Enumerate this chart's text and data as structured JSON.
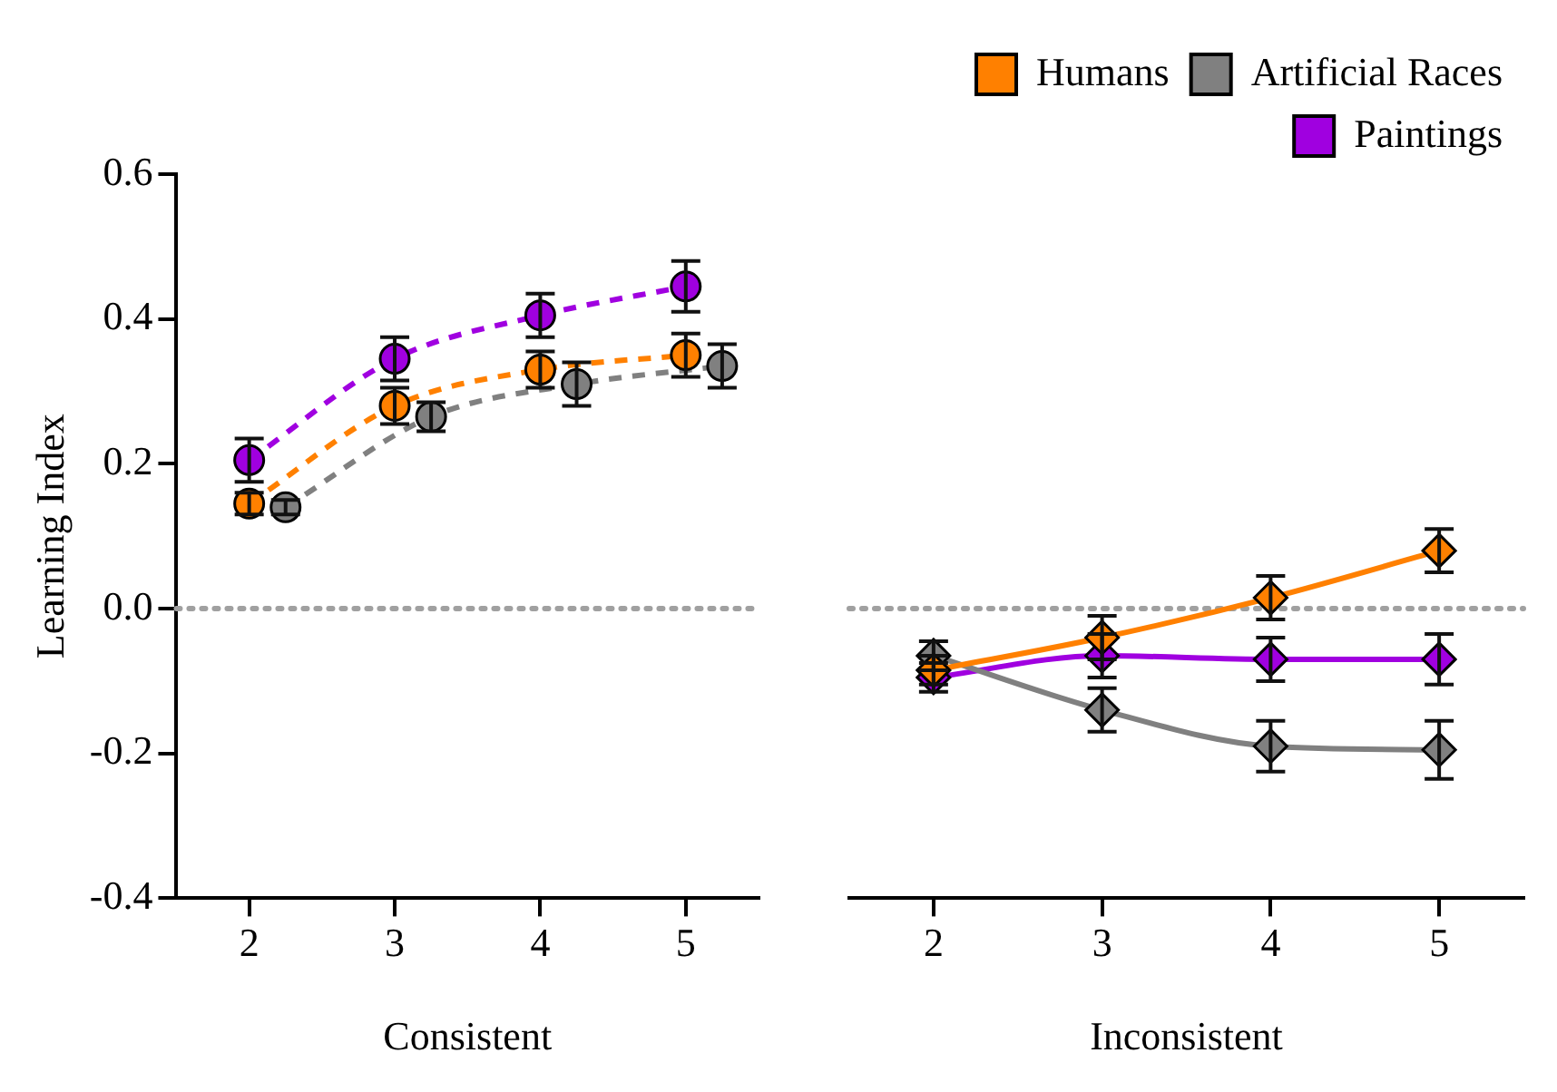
{
  "chart_data": [
    {
      "type": "line",
      "ylabel": "Learning Index",
      "xlabel": "Consistent",
      "xlim": [
        1.5,
        5.5
      ],
      "xticks": [
        2,
        3,
        4,
        5
      ],
      "ylim": [
        -0.4,
        0.6
      ],
      "yticks": [
        {
          "value": -0.4,
          "label": "-0.4"
        },
        {
          "value": -0.2,
          "label": "-0.2"
        },
        {
          "value": 0,
          "label": "0.0"
        },
        {
          "value": 0.2,
          "label": "0.2"
        },
        {
          "value": 0.4,
          "label": "0.4"
        },
        {
          "value": 0.6,
          "label": "0.6"
        }
      ],
      "grid": false,
      "ref_lines": [
        {
          "axis": "y",
          "value": 0,
          "color": "#a0a0a0",
          "line_style": "dotted"
        }
      ],
      "series": [
        {
          "color": "#ff8000",
          "marker": "circle",
          "line_style": "dashed",
          "x": [
            2,
            3,
            4,
            5
          ],
          "values": [
            0.145,
            0.28,
            0.33,
            0.35
          ],
          "errors": [
            0.015,
            0.025,
            0.025,
            0.03
          ]
        },
        {
          "color": "#808080",
          "marker": "circle",
          "line_style": "dashed",
          "x": [
            2.25,
            3.25,
            4.25,
            5.25
          ],
          "values": [
            0.14,
            0.265,
            0.31,
            0.335
          ],
          "errors": [
            0.01,
            0.02,
            0.03,
            0.03
          ]
        },
        {
          "color": "#a000e0",
          "marker": "circle",
          "line_style": "dashed",
          "x": [
            2,
            3,
            4,
            5
          ],
          "values": [
            0.205,
            0.345,
            0.405,
            0.445
          ],
          "errors": [
            0.03,
            0.03,
            0.03,
            0.035
          ]
        }
      ]
    },
    {
      "type": "line",
      "xlabel": "Inconsistent",
      "xlim": [
        1.5,
        5.5
      ],
      "xticks": [
        2,
        3,
        4,
        5
      ],
      "ylim": [
        -0.4,
        0.6
      ],
      "tick_labels": "x",
      "grid": false,
      "legend": "top right",
      "ref_lines": [
        {
          "axis": "y",
          "value": 0,
          "color": "#a0a0a0",
          "line_style": "dotted"
        }
      ],
      "series": [
        {
          "name": "Humans",
          "color": "#ff8000",
          "marker": "diamond",
          "line_style": "solid",
          "x": [
            2,
            3,
            4,
            5
          ],
          "values": [
            -0.085,
            -0.04,
            0.015,
            0.08
          ],
          "errors": [
            0.02,
            0.03,
            0.03,
            0.03
          ]
        },
        {
          "name": "Artificial Races",
          "color": "#808080",
          "marker": "diamond",
          "line_style": "solid",
          "x": [
            2,
            3,
            4,
            5
          ],
          "values": [
            -0.065,
            -0.14,
            -0.19,
            -0.195
          ],
          "errors": [
            0.02,
            0.03,
            0.035,
            0.04
          ]
        },
        {
          "name": "Paintings",
          "color": "#a000e0",
          "marker": "diamond",
          "line_style": "solid",
          "x": [
            2,
            3,
            4,
            5
          ],
          "values": [
            -0.095,
            -0.065,
            -0.07,
            -0.07
          ],
          "errors": [
            0.02,
            0.03,
            0.03,
            0.035
          ]
        }
      ]
    }
  ]
}
